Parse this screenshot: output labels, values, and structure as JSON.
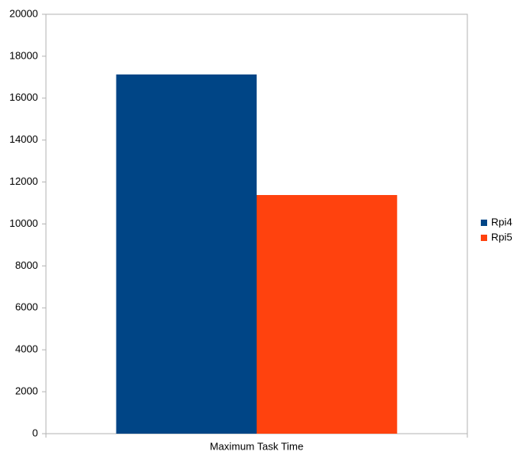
{
  "chart_data": {
    "type": "bar",
    "categories": [
      "Maximum Task Time"
    ],
    "series": [
      {
        "name": "Rpi4",
        "color": "#004586",
        "values": [
          17130
        ]
      },
      {
        "name": "Rpi5",
        "color": "#ff420e",
        "values": [
          11380
        ]
      }
    ],
    "ylim": [
      0,
      20000
    ],
    "yticks": [
      0,
      2000,
      4000,
      6000,
      8000,
      10000,
      12000,
      14000,
      16000,
      18000,
      20000
    ],
    "grid": false,
    "legend": "right"
  }
}
